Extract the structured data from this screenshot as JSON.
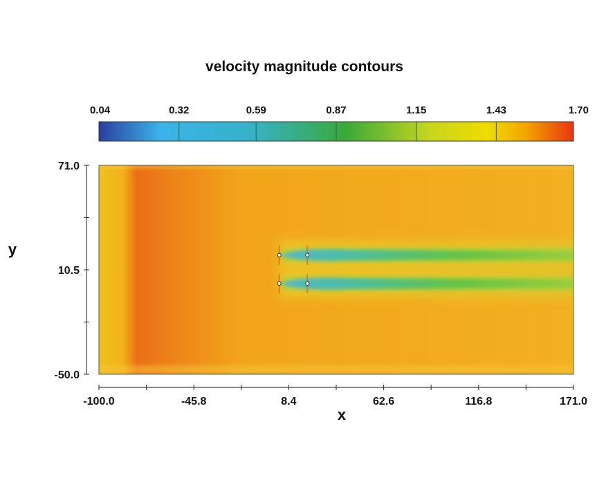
{
  "chart_data": {
    "type": "heatmap",
    "title": "velocity magnitude contours",
    "xlabel": "x",
    "ylabel": "y",
    "xlim": [
      -100.0,
      171.0
    ],
    "ylim": [
      -50.0,
      71.0
    ],
    "x_ticks": [
      -100.0,
      -45.8,
      8.4,
      62.6,
      116.8,
      171.0
    ],
    "x_tick_labels": [
      "-100.0",
      "-45.8",
      "8.4",
      "62.6",
      "116.8",
      "171.0"
    ],
    "y_ticks": [
      71.0,
      10.5,
      -50.0
    ],
    "y_tick_labels": [
      "71.0",
      "10.5",
      "-50.0"
    ],
    "colorbar": {
      "min": 0.04,
      "max": 1.7,
      "ticks": [
        0.04,
        0.32,
        0.59,
        0.87,
        1.15,
        1.43,
        1.7
      ],
      "tick_labels": [
        "0.04",
        "0.32",
        "0.59",
        "0.87",
        "1.15",
        "1.43",
        "1.70"
      ],
      "colormap": [
        "#2a3f9e",
        "#3bb3e8",
        "#36b2c8",
        "#3aaa3a",
        "#c8d61e",
        "#f0dc00",
        "#f2a400",
        "#e8360f"
      ]
    },
    "field": {
      "background_value": 1.55,
      "inlet_band_value": 1.62,
      "wakes": [
        {
          "y": 19,
          "x_start": 3,
          "x_end": 171,
          "min_value": 0.35
        },
        {
          "y": 2.5,
          "x_start": 3,
          "x_end": 171,
          "min_value": 0.4
        }
      ],
      "turbines": [
        {
          "x": 3,
          "y": 19
        },
        {
          "x": 19,
          "y": 19
        },
        {
          "x": 3,
          "y": 2.5
        },
        {
          "x": 19,
          "y": 2.5
        }
      ]
    }
  }
}
